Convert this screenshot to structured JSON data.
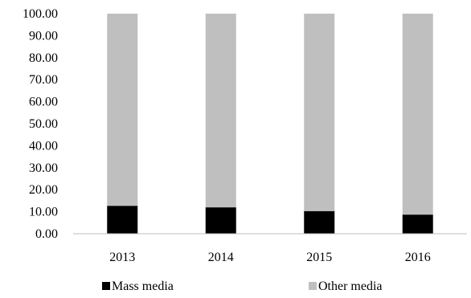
{
  "chart_data": {
    "type": "bar",
    "stacked": true,
    "title": "",
    "xlabel": "",
    "ylabel": "",
    "ylim": [
      0,
      100
    ],
    "y_ticks": [
      "0.00",
      "10.00",
      "20.00",
      "30.00",
      "40.00",
      "50.00",
      "60.00",
      "70.00",
      "80.00",
      "90.00",
      "100.00"
    ],
    "categories": [
      "2013",
      "2014",
      "2015",
      "2016"
    ],
    "series": [
      {
        "name": "Mass media",
        "color": "#000000",
        "values": [
          12.7,
          12.0,
          10.3,
          8.7
        ]
      },
      {
        "name": "Other media",
        "color": "#bfbfbf",
        "values": [
          87.3,
          88.0,
          89.7,
          91.3
        ]
      }
    ],
    "grid": false,
    "legend_position": "bottom"
  }
}
